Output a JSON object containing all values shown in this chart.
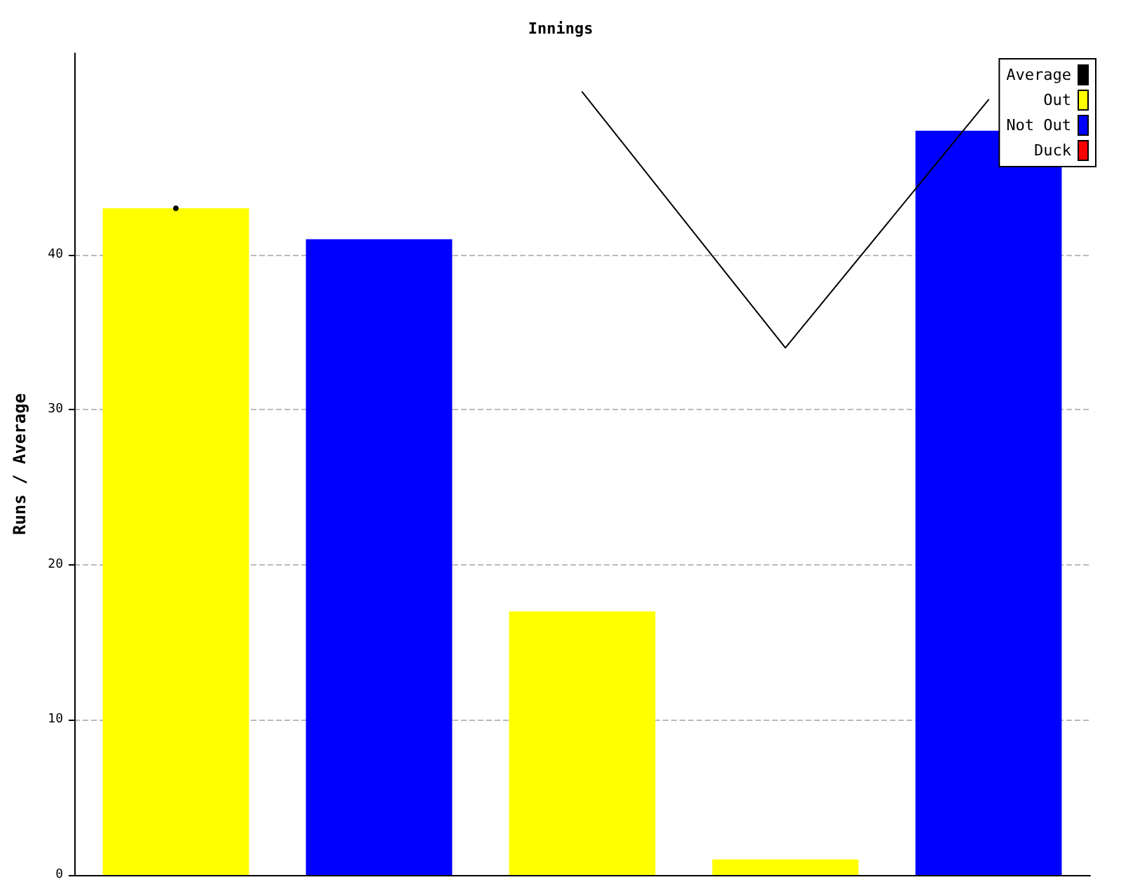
{
  "chart_data": {
    "type": "bar",
    "title": "Innings",
    "ylabel": "Runs / Average",
    "categories": [
      null,
      null,
      null,
      null,
      null
    ],
    "series": [
      {
        "name": "Average",
        "type": "line",
        "color": "#000000",
        "values": [
          43,
          null,
          50.5,
          34,
          50
        ]
      },
      {
        "name": "Out",
        "color": "#ffff00",
        "values": [
          43,
          null,
          17,
          1,
          null
        ]
      },
      {
        "name": "Not Out",
        "color": "#0000ff",
        "values": [
          null,
          41,
          null,
          null,
          48
        ]
      },
      {
        "name": "Duck",
        "color": "#ff0000",
        "values": [
          null,
          null,
          null,
          null,
          null
        ]
      }
    ],
    "stacked": true,
    "ylim": [
      0,
      53
    ],
    "yticks": [
      0,
      10,
      20,
      30,
      40
    ],
    "grid": "y",
    "legend": "top right",
    "marker": "none",
    "line_style": "solid"
  }
}
